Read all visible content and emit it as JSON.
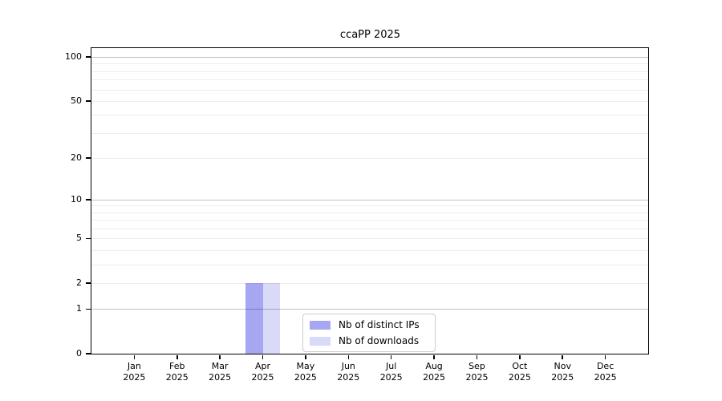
{
  "chart_data": {
    "type": "bar",
    "title": "ccaPP 2025",
    "categories": [
      "Jan",
      "Feb",
      "Mar",
      "Apr",
      "May",
      "Jun",
      "Jul",
      "Aug",
      "Sep",
      "Oct",
      "Nov",
      "Dec"
    ],
    "year": "2025",
    "series": [
      {
        "name": "Nb of distinct IPs",
        "color": "#a6a6f2",
        "values": [
          0,
          0,
          0,
          2,
          0,
          0,
          0,
          0,
          0,
          0,
          0,
          0
        ]
      },
      {
        "name": "Nb of downloads",
        "color": "#d9d9f8",
        "values": [
          0,
          0,
          0,
          2,
          0,
          0,
          0,
          0,
          0,
          0,
          0,
          0
        ]
      }
    ],
    "xlabel": "",
    "ylabel": "",
    "y_scale": "log1p",
    "ylim": [
      0,
      115
    ],
    "y_ticks": [
      0,
      1,
      2,
      5,
      10,
      20,
      50,
      100
    ],
    "grid_major": [
      1,
      10,
      100
    ],
    "grid_minor": [
      2,
      3,
      4,
      5,
      6,
      7,
      8,
      9,
      20,
      30,
      40,
      50,
      60,
      70,
      80,
      90
    ],
    "grid": true,
    "legend_position": "lower center inside"
  },
  "colors": {
    "background": "#ffffff",
    "axis": "#000000",
    "grid_major": "#c2c2c2",
    "grid_minor": "#ededed",
    "legend_border": "#cccccc",
    "text": "#000000"
  }
}
